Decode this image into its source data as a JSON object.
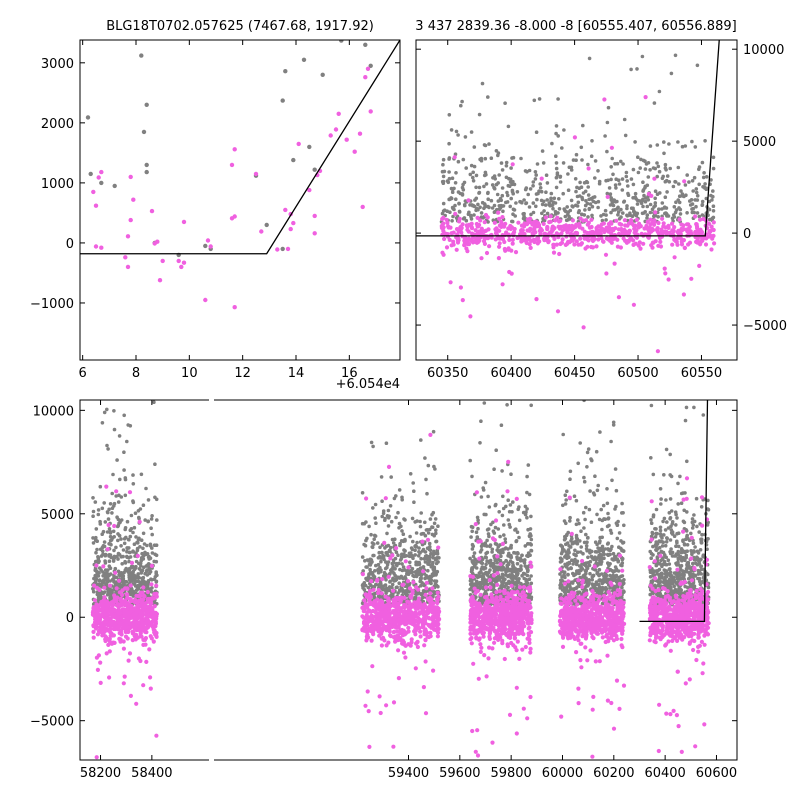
{
  "figure": {
    "colors": {
      "raw": "#808080",
      "detrended": "#f060e0",
      "model": "#000000"
    }
  },
  "panels": [
    {
      "id": "zoom",
      "title": "BLG18T0702.057625 (7467.68, 1917.92)",
      "yaxis_side": "left",
      "xlim": [
        5.9,
        17.9
      ],
      "ylim": [
        -1950,
        3380
      ],
      "xticks": [
        6,
        8,
        10,
        12,
        14,
        16
      ],
      "yticks": [
        -1000,
        0,
        1000,
        2000,
        3000
      ],
      "offset_text": "+6.054e4",
      "chart_data": {
        "type": "scatter",
        "x_offset": 60540,
        "series": [
          {
            "color": "#808080",
            "points": [
              [
                6.3,
                1150
              ],
              [
                6.2,
                2090
              ],
              [
                6.7,
                1000
              ],
              [
                7.2,
                950
              ],
              [
                8.2,
                3120
              ],
              [
                8.3,
                1850
              ],
              [
                8.4,
                2300
              ],
              [
                8.4,
                1300
              ],
              [
                8.4,
                1180
              ],
              [
                8.7,
                0
              ],
              [
                9.6,
                -200
              ],
              [
                10.6,
                -50
              ],
              [
                10.8,
                -100
              ],
              [
                12.5,
                1120
              ],
              [
                12.9,
                300
              ],
              [
                13.5,
                2370
              ],
              [
                13.6,
                2860
              ],
              [
                13.9,
                1380
              ],
              [
                14.3,
                3050
              ],
              [
                14.5,
                1600
              ],
              [
                15.0,
                2800
              ],
              [
                15.7,
                3370
              ],
              [
                16.6,
                3300
              ],
              [
                16.8,
                2950
              ],
              [
                14.7,
                1220
              ],
              [
                13.5,
                -100
              ]
            ]
          },
          {
            "color": "#f060e0",
            "points": [
              [
                6.4,
                850
              ],
              [
                6.5,
                620
              ],
              [
                6.6,
                1090
              ],
              [
                6.5,
                -60
              ],
              [
                6.7,
                -80
              ],
              [
                6.7,
                1180
              ],
              [
                7.6,
                -240
              ],
              [
                7.7,
                -400
              ],
              [
                7.7,
                110
              ],
              [
                7.8,
                1100
              ],
              [
                7.8,
                380
              ],
              [
                7.9,
                720
              ],
              [
                8.6,
                530
              ],
              [
                8.7,
                -10
              ],
              [
                8.8,
                20
              ],
              [
                9.0,
                -300
              ],
              [
                8.9,
                -620
              ],
              [
                9.6,
                -300
              ],
              [
                9.7,
                -400
              ],
              [
                9.8,
                -330
              ],
              [
                9.8,
                350
              ],
              [
                10.6,
                -950
              ],
              [
                10.7,
                40
              ],
              [
                10.8,
                -60
              ],
              [
                11.6,
                410
              ],
              [
                11.7,
                -1070
              ],
              [
                11.7,
                1560
              ],
              [
                11.6,
                1300
              ],
              [
                11.7,
                440
              ],
              [
                12.5,
                1150
              ],
              [
                12.7,
                190
              ],
              [
                13.3,
                -110
              ],
              [
                13.6,
                550
              ],
              [
                13.7,
                -100
              ],
              [
                13.8,
                480
              ],
              [
                13.8,
                230
              ],
              [
                13.9,
                330
              ],
              [
                14.1,
                1650
              ],
              [
                14.7,
                450
              ],
              [
                14.7,
                160
              ],
              [
                14.8,
                1130
              ],
              [
                14.9,
                1200
              ],
              [
                15.3,
                1790
              ],
              [
                15.5,
                1890
              ],
              [
                15.6,
                2150
              ],
              [
                15.9,
                1720
              ],
              [
                16.2,
                1520
              ],
              [
                16.4,
                1820
              ],
              [
                16.6,
                2760
              ],
              [
                16.7,
                2900
              ],
              [
                16.8,
                2190
              ],
              [
                16.5,
                600
              ],
              [
                14.5,
                880
              ]
            ]
          }
        ],
        "model": [
          [
            5.9,
            -180
          ],
          [
            12.9,
            -180
          ],
          [
            17.9,
            3380
          ]
        ]
      }
    },
    {
      "id": "season",
      "title": "3 437 2839.36 -8.000 -8 [60555.407, 60556.889]",
      "yaxis_side": "right",
      "xlim": [
        60325,
        60578
      ],
      "ylim": [
        -6900,
        10500
      ],
      "xticks": [
        60350,
        60400,
        60450,
        60500,
        60550
      ],
      "yticks": [
        -5000,
        0,
        5000,
        10000
      ],
      "offset_text": "",
      "chart_data": {
        "type": "scatter",
        "season_range": [
          60345,
          60560
        ],
        "model": [
          [
            60325,
            -150
          ],
          [
            60553,
            -150
          ],
          [
            60564,
            10500
          ]
        ]
      }
    },
    {
      "id": "full",
      "title": "",
      "yaxis_side": "left",
      "xlim": [
        58120,
        60680
      ],
      "ylim": [
        -6900,
        10500
      ],
      "xticks": [
        58200,
        58400,
        59400,
        59600,
        59800,
        60000,
        60200,
        60400,
        60600
      ],
      "yticks": [
        -5000,
        0,
        5000,
        10000
      ],
      "broken_axis": {
        "gap_x": [
          58470,
          59170
        ]
      },
      "offset_text": "",
      "chart_data": {
        "type": "scatter",
        "seasons": [
          [
            58170,
            58420
          ],
          [
            59220,
            59520
          ],
          [
            59640,
            59880
          ],
          [
            59990,
            60240
          ],
          [
            60340,
            60570
          ]
        ],
        "model": [
          [
            60300,
            -200
          ],
          [
            60553,
            -200
          ],
          [
            60565,
            10500
          ]
        ]
      }
    }
  ]
}
